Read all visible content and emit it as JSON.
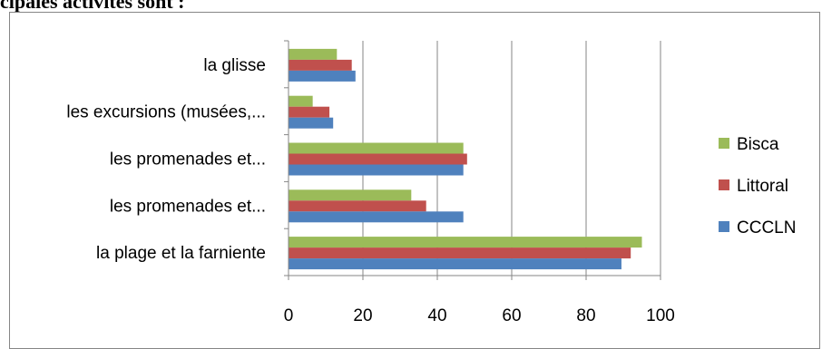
{
  "heading": "cipales activités sont :",
  "chart_data": {
    "type": "bar",
    "orientation": "horizontal",
    "title": "",
    "xlabel": "",
    "ylabel": "",
    "xlim": [
      0,
      100
    ],
    "x_ticks": [
      "0",
      "20",
      "40",
      "60",
      "80",
      "100"
    ],
    "grid": true,
    "legend_position": "right",
    "categories": [
      "la glisse",
      "les excursions (musées,...",
      "les promenades et...",
      "les promenades et...",
      "la plage et la farniente"
    ],
    "series": [
      {
        "name": "Bisca",
        "color": "#9bbb59",
        "values": [
          13,
          6.5,
          47,
          33,
          95
        ]
      },
      {
        "name": "Littoral",
        "color": "#c0504d",
        "values": [
          17,
          11,
          48,
          37,
          92
        ]
      },
      {
        "name": "CCCLN",
        "color": "#4f81bd",
        "values": [
          18,
          12,
          47,
          47,
          89.5
        ]
      }
    ]
  }
}
